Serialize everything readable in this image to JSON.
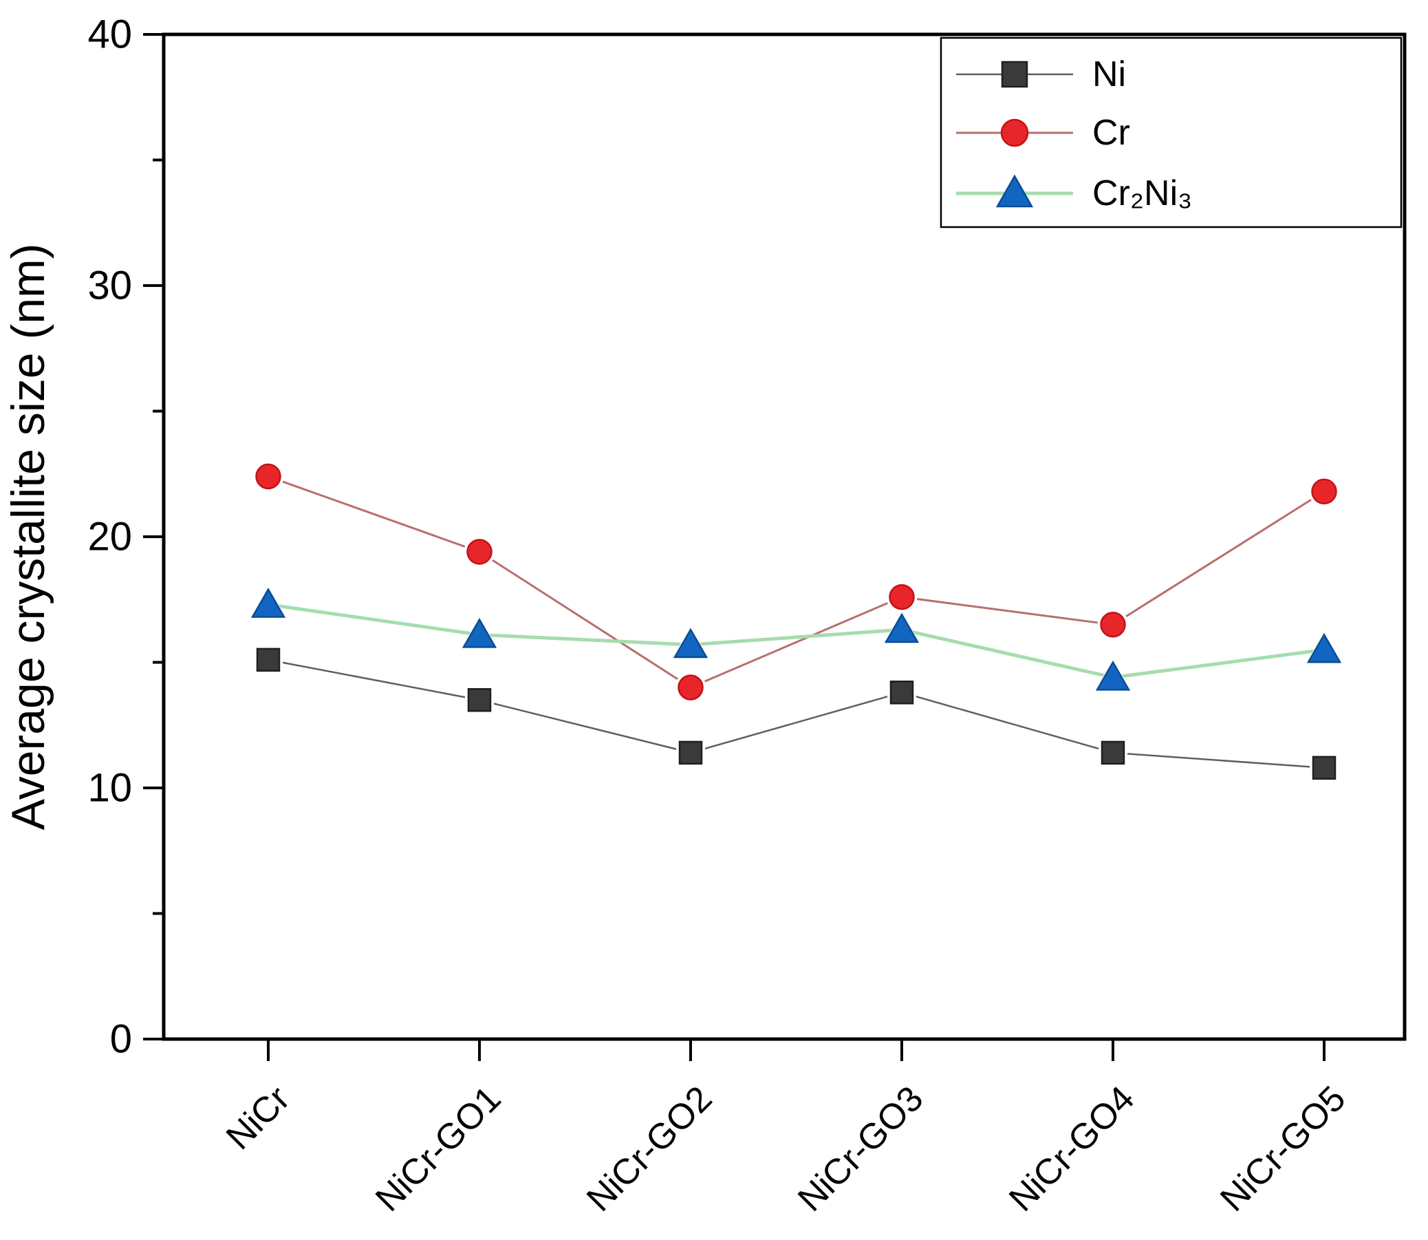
{
  "y_axis": {
    "label": "Average crystallite size (nm)",
    "ticks": [
      "0",
      "10",
      "20",
      "30",
      "40"
    ]
  },
  "x_axis": {
    "labels": [
      "NiCr",
      "NiCr-GO1",
      "NiCr-GO2",
      "NiCr-GO3",
      "NiCr-GO4",
      "NiCr-GO5"
    ]
  },
  "legend": {
    "items": [
      {
        "label": "Ni",
        "marker": "square",
        "marker_color": "#3a3a3a",
        "edge_color": "#1f1f1f",
        "line_color": "#5f5f5f"
      },
      {
        "label": "Cr",
        "marker": "circle",
        "marker_color": "#e8262a",
        "edge_color": "#c01318",
        "line_color": "#b96e6e"
      },
      {
        "label": "Cr₂Ni₃",
        "marker": "triangle",
        "marker_color": "#1266c2",
        "edge_color": "#0a4c92",
        "line_color": "#a6dcae"
      }
    ]
  },
  "chart_data": {
    "type": "line",
    "title": "",
    "xlabel": "",
    "ylabel": "Average crystallite size (nm)",
    "categories": [
      "NiCr",
      "NiCr-GO1",
      "NiCr-GO2",
      "NiCr-GO3",
      "NiCr-GO4",
      "NiCr-GO5"
    ],
    "series": [
      {
        "name": "Ni",
        "marker": "square",
        "marker_color": "#3a3a3a",
        "edge_color": "#1f1f1f",
        "line_color": "#5f5f5f",
        "line_width": 2.5,
        "values": [
          15.1,
          13.5,
          11.4,
          13.8,
          11.4,
          10.8
        ]
      },
      {
        "name": "Cr",
        "marker": "circle",
        "marker_color": "#e8262a",
        "edge_color": "#c01318",
        "line_color": "#b96e6e",
        "line_width": 3,
        "values": [
          22.4,
          19.4,
          14.0,
          17.6,
          16.5,
          21.8
        ]
      },
      {
        "name": "Cr₂Ni₃",
        "marker": "triangle",
        "marker_color": "#1266c2",
        "edge_color": "#0a4c92",
        "line_color": "#a6dcae",
        "line_width": 5,
        "values": [
          17.3,
          16.1,
          15.7,
          16.3,
          14.4,
          15.5
        ]
      }
    ],
    "ylim": [
      0,
      40
    ],
    "yticks": [
      0,
      10,
      20,
      30,
      40
    ],
    "minor_ytick_step": 5,
    "grid": false,
    "legend_position": "top-right"
  }
}
